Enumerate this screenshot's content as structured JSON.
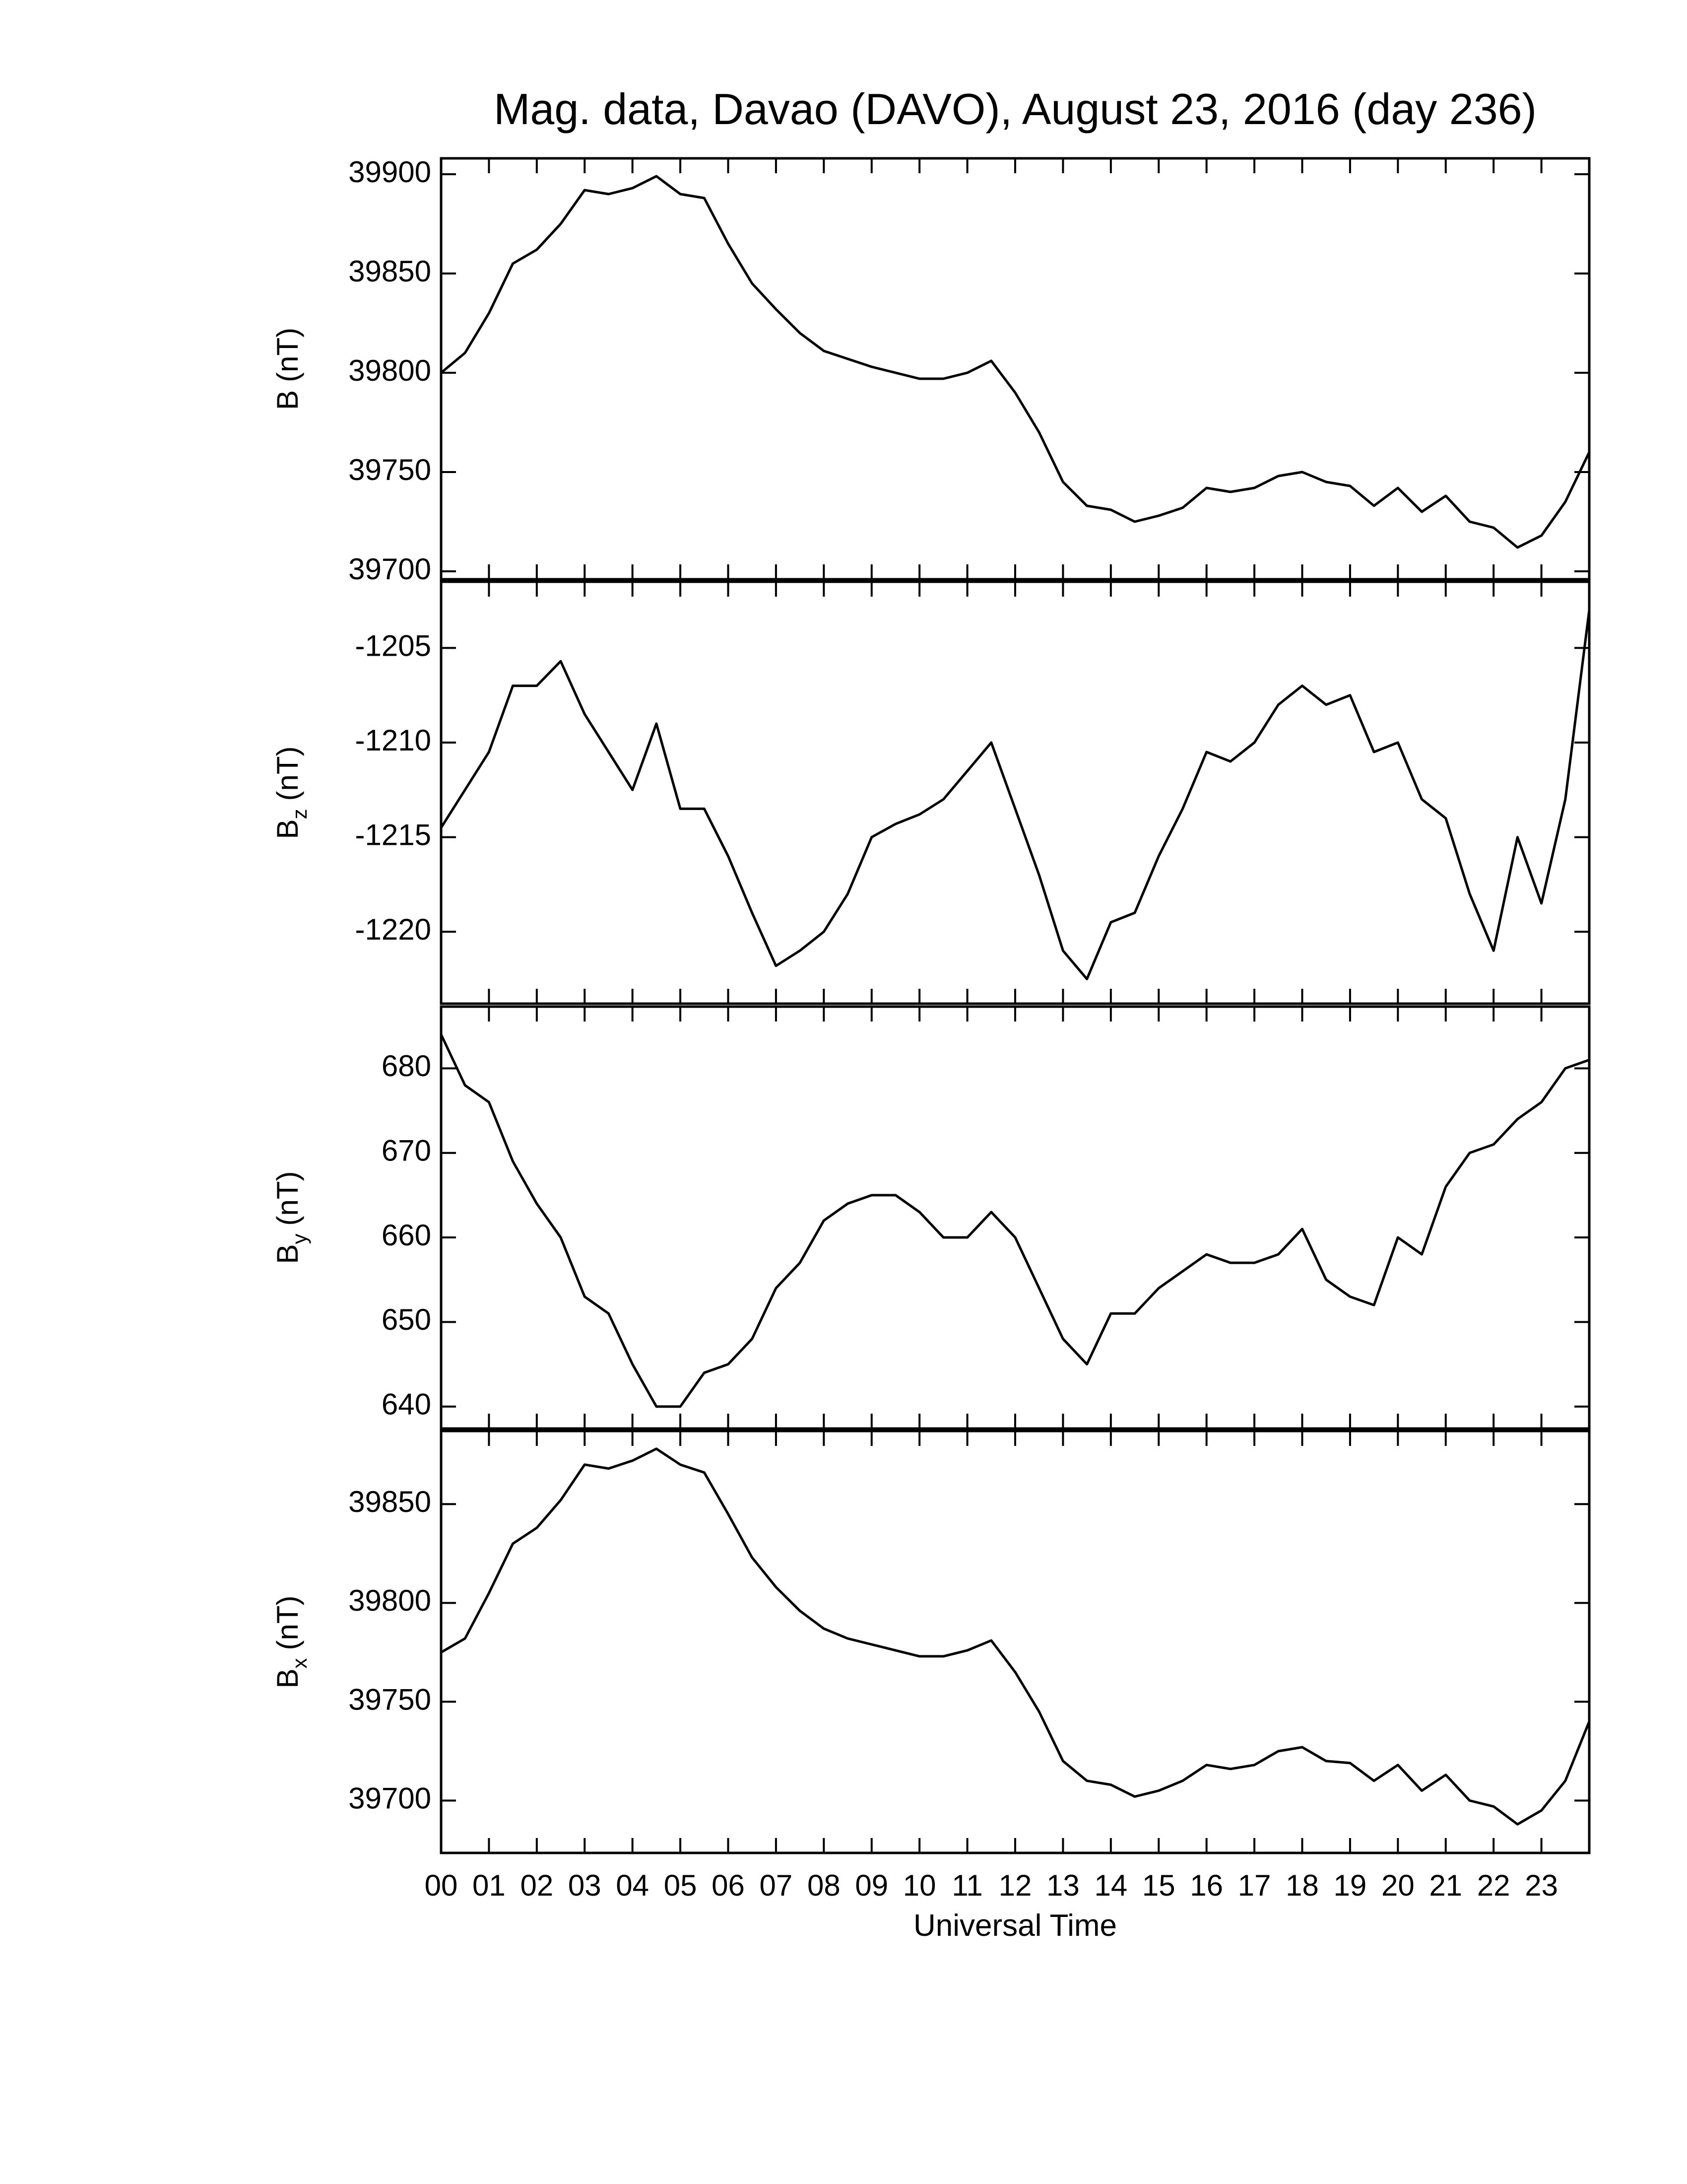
{
  "chart_data": [
    {
      "type": "line",
      "title": "Mag. data, Davao (DAVO), August 23, 2016 (day 236)",
      "ylabel": "B",
      "ylabel_unit": "(nT)",
      "xlim": [
        0,
        24
      ],
      "xticks": [
        0,
        1,
        2,
        3,
        4,
        5,
        6,
        7,
        8,
        9,
        10,
        11,
        12,
        13,
        14,
        15,
        16,
        17,
        18,
        19,
        20,
        21,
        22,
        23
      ],
      "ylim": [
        39696,
        39908
      ],
      "yticks": [
        39700,
        39750,
        39800,
        39850,
        39900
      ],
      "x": [
        0,
        0.5,
        1,
        1.5,
        2,
        2.5,
        3,
        3.5,
        4,
        4.5,
        5,
        5.5,
        6,
        6.5,
        7,
        7.5,
        8,
        8.5,
        9,
        9.5,
        10,
        10.5,
        11,
        11.5,
        12,
        12.5,
        13,
        13.5,
        14,
        14.5,
        15,
        15.5,
        16,
        16.5,
        17,
        17.5,
        18,
        18.5,
        19,
        19.5,
        20,
        20.5,
        21,
        21.5,
        22,
        22.5,
        23,
        23.5,
        24
      ],
      "series": [
        {
          "color": "#000000",
          "values": [
            39800,
            39810,
            39830,
            39855,
            39862,
            39875,
            39892,
            39890,
            39893,
            39899,
            39890,
            39888,
            39865,
            39845,
            39832,
            39820,
            39811,
            39807,
            39803,
            39800,
            39797,
            39797,
            39800,
            39806,
            39790,
            39770,
            39745,
            39733,
            39731,
            39725,
            39728,
            39732,
            39742,
            39740,
            39742,
            39748,
            39750,
            39745,
            39743,
            39733,
            39742,
            39730,
            39738,
            39725,
            39722,
            39712,
            39718,
            39735,
            39760
          ]
        }
      ]
    },
    {
      "type": "line",
      "ylabel": "B",
      "ylabel_sub": "z",
      "ylabel_unit": "(nT)",
      "xlim": [
        0,
        24
      ],
      "xticks": [
        0,
        1,
        2,
        3,
        4,
        5,
        6,
        7,
        8,
        9,
        10,
        11,
        12,
        13,
        14,
        15,
        16,
        17,
        18,
        19,
        20,
        21,
        22,
        23
      ],
      "ylim": [
        -1223.8,
        -1201.5
      ],
      "yticks": [
        -1220,
        -1215,
        -1210,
        -1205
      ],
      "x": [
        0,
        0.5,
        1,
        1.5,
        2,
        2.5,
        3,
        3.5,
        4,
        4.5,
        5,
        5.5,
        6,
        6.5,
        7,
        7.5,
        8,
        8.5,
        9,
        9.5,
        10,
        10.5,
        11,
        11.5,
        12,
        12.5,
        13,
        13.5,
        14,
        14.5,
        15,
        15.5,
        16,
        16.5,
        17,
        17.5,
        18,
        18.5,
        19,
        19.5,
        20,
        20.5,
        21,
        21.5,
        22,
        22.5,
        23,
        23.5,
        24
      ],
      "series": [
        {
          "color": "#000000",
          "values": [
            -1214.5,
            -1212.5,
            -1210.5,
            -1207,
            -1207,
            -1205.7,
            -1208.5,
            -1210.5,
            -1212.5,
            -1209,
            -1213.5,
            -1213.5,
            -1216,
            -1219,
            -1221.8,
            -1221,
            -1220,
            -1218,
            -1215,
            -1214.3,
            -1213.8,
            -1213,
            -1211.5,
            -1210,
            -1213.5,
            -1217,
            -1221,
            -1222.5,
            -1219.5,
            -1219,
            -1216,
            -1213.5,
            -1210.5,
            -1211,
            -1210,
            -1208,
            -1207,
            -1208,
            -1207.5,
            -1210.5,
            -1210,
            -1213,
            -1214,
            -1218,
            -1221,
            -1215,
            -1218.5,
            -1213,
            -1203
          ]
        }
      ]
    },
    {
      "type": "line",
      "ylabel": "B",
      "ylabel_sub": "y",
      "ylabel_unit": "(nT)",
      "xlim": [
        0,
        24
      ],
      "xticks": [
        0,
        1,
        2,
        3,
        4,
        5,
        6,
        7,
        8,
        9,
        10,
        11,
        12,
        13,
        14,
        15,
        16,
        17,
        18,
        19,
        20,
        21,
        22,
        23
      ],
      "ylim": [
        637.4,
        687.3
      ],
      "yticks": [
        640,
        650,
        660,
        670,
        680
      ],
      "x": [
        0,
        0.5,
        1,
        1.5,
        2,
        2.5,
        3,
        3.5,
        4,
        4.5,
        5,
        5.5,
        6,
        6.5,
        7,
        7.5,
        8,
        8.5,
        9,
        9.5,
        10,
        10.5,
        11,
        11.5,
        12,
        12.5,
        13,
        13.5,
        14,
        14.5,
        15,
        15.5,
        16,
        16.5,
        17,
        17.5,
        18,
        18.5,
        19,
        19.5,
        20,
        20.5,
        21,
        21.5,
        22,
        22.5,
        23,
        23.5,
        24
      ],
      "series": [
        {
          "color": "#000000",
          "values": [
            684,
            678,
            676,
            669,
            664,
            660,
            653,
            651,
            645,
            640,
            640,
            644,
            645,
            648,
            654,
            657,
            662,
            664,
            665,
            665,
            663,
            660,
            660,
            663,
            660,
            654,
            648,
            645,
            651,
            651,
            654,
            656,
            658,
            657,
            657,
            658,
            661,
            655,
            653,
            652,
            660,
            658,
            666,
            670,
            671,
            674,
            676,
            680,
            681
          ]
        }
      ]
    },
    {
      "type": "line",
      "ylabel": "B",
      "ylabel_sub": "x",
      "ylabel_unit": "(nT)",
      "xlabel": "Universal Time",
      "xlim": [
        0,
        24
      ],
      "xticks": [
        {
          "value": 0,
          "label": "00"
        },
        {
          "value": 1,
          "label": "01"
        },
        {
          "value": 2,
          "label": "02"
        },
        {
          "value": 3,
          "label": "03"
        },
        {
          "value": 4,
          "label": "04"
        },
        {
          "value": 5,
          "label": "05"
        },
        {
          "value": 6,
          "label": "06"
        },
        {
          "value": 7,
          "label": "07"
        },
        {
          "value": 8,
          "label": "08"
        },
        {
          "value": 9,
          "label": "09"
        },
        {
          "value": 10,
          "label": "10"
        },
        {
          "value": 11,
          "label": "11"
        },
        {
          "value": 12,
          "label": "12"
        },
        {
          "value": 13,
          "label": "13"
        },
        {
          "value": 14,
          "label": "14"
        },
        {
          "value": 15,
          "label": "15"
        },
        {
          "value": 16,
          "label": "16"
        },
        {
          "value": 17,
          "label": "17"
        },
        {
          "value": 18,
          "label": "18"
        },
        {
          "value": 19,
          "label": "19"
        },
        {
          "value": 20,
          "label": "20"
        },
        {
          "value": 21,
          "label": "21"
        },
        {
          "value": 22,
          "label": "22"
        },
        {
          "value": 23,
          "label": "23"
        }
      ],
      "ylim": [
        39673.5,
        39887
      ],
      "yticks": [
        39700,
        39750,
        39800,
        39850
      ],
      "x": [
        0,
        0.5,
        1,
        1.5,
        2,
        2.5,
        3,
        3.5,
        4,
        4.5,
        5,
        5.5,
        6,
        6.5,
        7,
        7.5,
        8,
        8.5,
        9,
        9.5,
        10,
        10.5,
        11,
        11.5,
        12,
        12.5,
        13,
        13.5,
        14,
        14.5,
        15,
        15.5,
        16,
        16.5,
        17,
        17.5,
        18,
        18.5,
        19,
        19.5,
        20,
        20.5,
        21,
        21.5,
        22,
        22.5,
        23,
        23.5,
        24
      ],
      "series": [
        {
          "color": "#000000",
          "values": [
            39775,
            39782,
            39805,
            39830,
            39838,
            39852,
            39870,
            39868,
            39872,
            39878,
            39870,
            39866,
            39845,
            39823,
            39808,
            39796,
            39787,
            39782,
            39779,
            39776,
            39773,
            39773,
            39776,
            39781,
            39765,
            39745,
            39720,
            39710,
            39708,
            39702,
            39705,
            39710,
            39718,
            39716,
            39718,
            39725,
            39727,
            39720,
            39719,
            39710,
            39718,
            39705,
            39713,
            39700,
            39697,
            39688,
            39695,
            39710,
            39740
          ]
        }
      ]
    }
  ]
}
